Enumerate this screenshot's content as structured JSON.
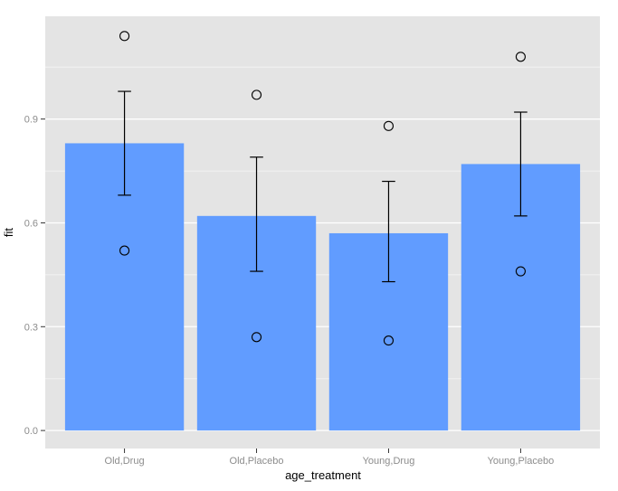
{
  "chart_data": {
    "type": "bar",
    "title": "",
    "xlabel": "age_treatment",
    "ylabel": "fit",
    "categories": [
      "Old,Drug",
      "Old,Placebo",
      "Young,Drug",
      "Young,Placebo"
    ],
    "bar_values": [
      0.83,
      0.62,
      0.57,
      0.77
    ],
    "error_bars": [
      {
        "lower": 0.68,
        "upper": 0.98
      },
      {
        "lower": 0.46,
        "upper": 0.79
      },
      {
        "lower": 0.43,
        "upper": 0.72
      },
      {
        "lower": 0.62,
        "upper": 0.92
      }
    ],
    "points": [
      {
        "category": "Old,Drug",
        "values": [
          1.14,
          0.52
        ]
      },
      {
        "category": "Old,Placebo",
        "values": [
          0.97,
          0.27
        ]
      },
      {
        "category": "Young,Drug",
        "values": [
          0.88,
          0.26
        ]
      },
      {
        "category": "Young,Placebo",
        "values": [
          1.08,
          0.46
        ]
      }
    ],
    "ylim": [
      -0.052,
      1.197
    ],
    "yticks": [
      0.0,
      0.3,
      0.6,
      0.9
    ],
    "ytick_labels": [
      "0.0",
      "0.3",
      "0.6",
      "0.9"
    ],
    "yticks_minor": [
      0.15,
      0.45,
      0.75,
      1.05
    ],
    "grid": true,
    "legend": "none",
    "colors": {
      "bar_fill": "#619CFF",
      "panel_bg": "#E4E4E4",
      "grid_major": "#FFFFFF",
      "grid_minor": "#F2F2F2",
      "tick_label": "#8C8C8C",
      "tick_mark": "#333333",
      "axis_title": "#000000",
      "error_bar": "#000000",
      "point_stroke": "#000000"
    }
  }
}
